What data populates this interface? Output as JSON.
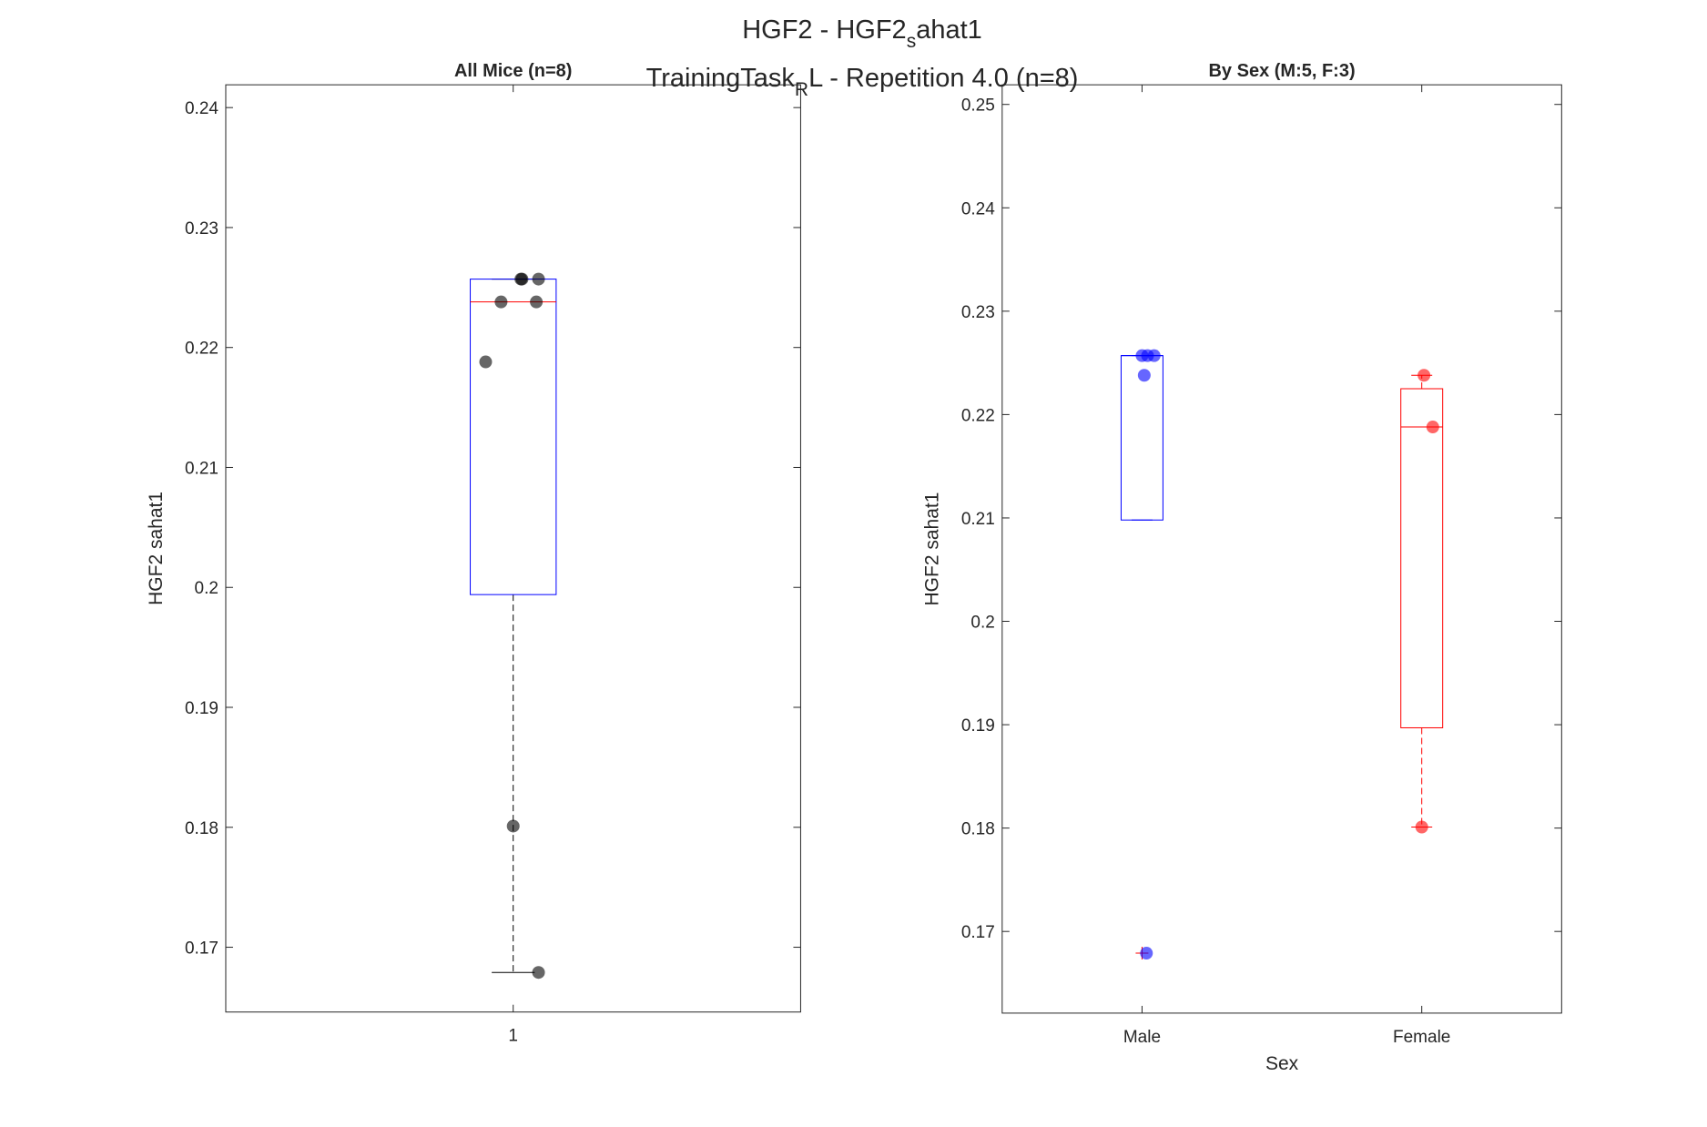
{
  "title": [
    "HGF2 - HGF2",
    "s",
    "ahat1"
  ],
  "subtitle": [
    "TrainingTask",
    "R",
    "L - Repetition 4.0 (n=8)"
  ],
  "chart_data": [
    {
      "type": "box",
      "title": "All Mice (n=8)",
      "ylabel": "HGF2 sahat1",
      "categories": [
        "1"
      ],
      "ylim": [
        0.1646,
        0.2419
      ],
      "yticks": [
        0.17,
        0.18,
        0.19,
        0.2,
        0.21,
        0.22,
        0.23,
        0.24
      ],
      "boxes": [
        {
          "color": "#0000ff",
          "median_color": "#ff0000",
          "whisker_color": "#000000",
          "point_color": "#000000",
          "q1": 0.1994,
          "median": 0.2238,
          "q3": 0.2257,
          "whisker_low": 0.1679,
          "whisker_high": 0.2257,
          "outliers": [],
          "points": [
            0.2257,
            0.2257,
            0.2257,
            0.2238,
            0.2238,
            0.2188,
            0.1801,
            0.1679
          ]
        }
      ]
    },
    {
      "type": "box",
      "title": "By Sex (M:5, F:3)",
      "ylabel": "HGF2 sahat1",
      "xlabel": "Sex",
      "categories": [
        "Male",
        "Female"
      ],
      "ylim": [
        0.1621,
        0.2519
      ],
      "yticks": [
        0.17,
        0.18,
        0.19,
        0.2,
        0.21,
        0.22,
        0.23,
        0.24,
        0.25
      ],
      "boxes": [
        {
          "color": "#0000ff",
          "median_color": "#0000ff",
          "whisker_color": "#0000ff",
          "point_color": "#0000ff",
          "q1": 0.2098,
          "median": 0.2257,
          "q3": 0.2257,
          "whisker_low": 0.2098,
          "whisker_high": 0.2257,
          "outliers": [
            0.1679
          ],
          "points": [
            0.2257,
            0.2257,
            0.2257,
            0.2238,
            0.1679
          ]
        },
        {
          "color": "#ff0000",
          "median_color": "#ff0000",
          "whisker_color": "#ff0000",
          "point_color": "#ff0000",
          "q1": 0.1897,
          "median": 0.2188,
          "q3": 0.2225,
          "whisker_low": 0.1801,
          "whisker_high": 0.2238,
          "outliers": [],
          "points": [
            0.2238,
            0.2188,
            0.1801
          ]
        }
      ]
    }
  ]
}
